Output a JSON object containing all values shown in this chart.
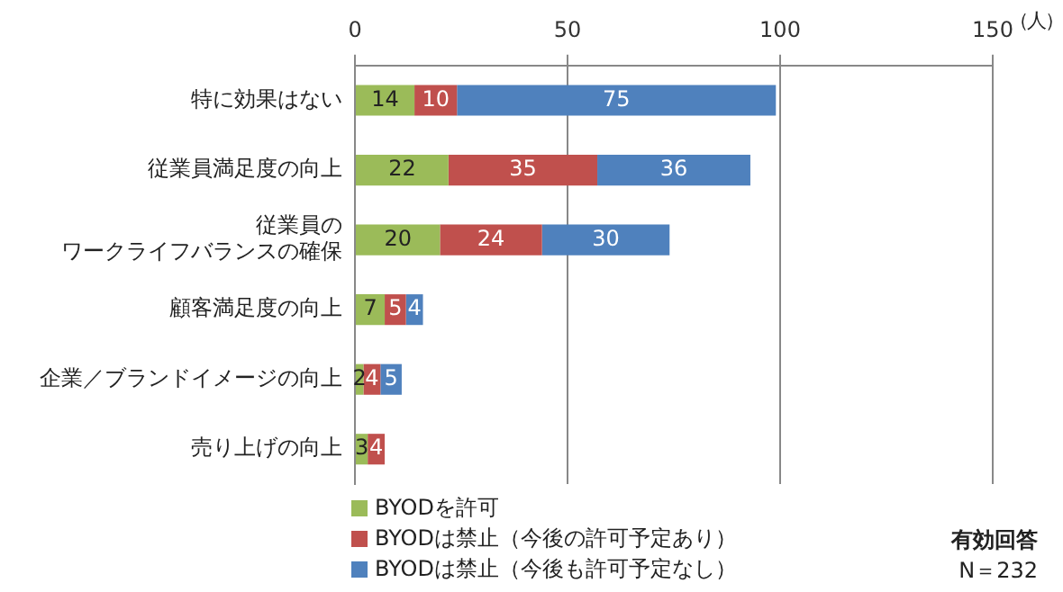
{
  "chart_data": {
    "type": "bar",
    "orientation": "horizontal",
    "stacked": true,
    "xlabel": "（人）",
    "categories": [
      "特に効果はない",
      "従業員満足度の向上",
      "従業員のワークライフバランスの確保",
      "顧客満足度の向上",
      "企業／ブランドイメージの向上",
      "売り上げの向上"
    ],
    "series": [
      {
        "name": "BYODを許可",
        "color": "#9bbb59",
        "values": [
          14,
          22,
          20,
          7,
          2,
          3
        ]
      },
      {
        "name": "BYODは禁止（今後の許可予定あり）",
        "color": "#c0504d",
        "values": [
          10,
          35,
          24,
          5,
          4,
          4
        ]
      },
      {
        "name": "BYODは禁止（今後も許可予定なし）",
        "color": "#4f81bd",
        "values": [
          75,
          36,
          30,
          4,
          5,
          null
        ]
      }
    ],
    "xlim": [
      0,
      150
    ],
    "xticks": [
      0,
      50,
      100,
      150
    ],
    "grid": "x",
    "legend": "bottom left",
    "data_labels": true,
    "annotations": [
      "有効回答",
      "N＝232"
    ]
  }
}
